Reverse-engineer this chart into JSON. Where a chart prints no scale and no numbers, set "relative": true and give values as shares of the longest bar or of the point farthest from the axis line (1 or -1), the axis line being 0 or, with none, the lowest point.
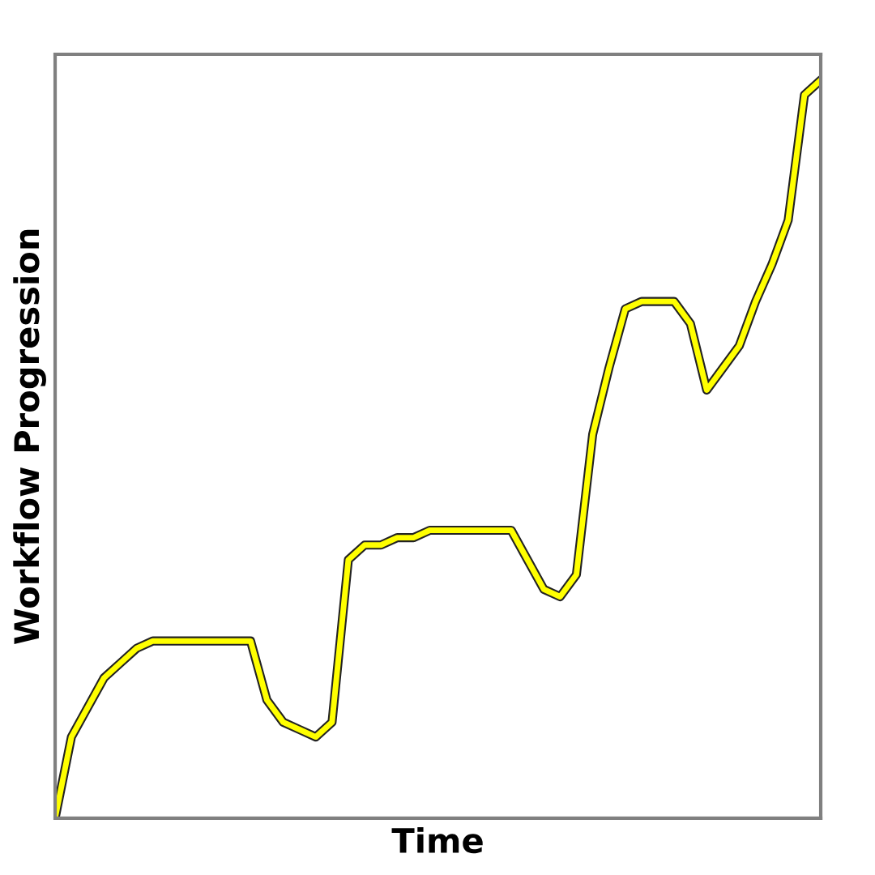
{
  "chart_data": {
    "type": "line",
    "xlabel": "Time",
    "ylabel": "Workflow Progression",
    "relative": true,
    "marker": "none",
    "line_style": "solid",
    "categories": [
      null,
      null,
      null,
      null,
      null,
      null,
      null,
      null,
      null,
      null,
      null,
      null,
      null,
      null,
      null,
      null,
      null,
      null,
      null,
      null,
      null,
      null,
      null,
      null,
      null,
      null,
      null,
      null,
      null,
      null,
      null,
      null,
      null,
      null,
      null,
      null,
      null,
      null,
      null,
      null,
      null,
      null,
      null,
      null,
      null,
      null,
      null,
      null
    ],
    "series": [
      {
        "color": "#ffff00",
        "values": [
          0,
          0.11,
          0.15,
          0.19,
          0.21,
          0.23,
          0.24,
          0.24,
          0.24,
          0.24,
          0.24,
          0.24,
          0.24,
          0.16,
          0.13,
          0.12,
          0.11,
          0.13,
          0.35,
          0.37,
          0.37,
          0.38,
          0.38,
          0.39,
          0.39,
          0.39,
          0.39,
          0.39,
          0.39,
          0.35,
          0.31,
          0.3,
          0.33,
          0.52,
          0.61,
          0.69,
          0.7,
          0.7,
          0.7,
          0.67,
          0.58,
          0.61,
          0.64,
          0.7,
          0.75,
          0.81,
          0.98,
          1
        ]
      }
    ]
  }
}
